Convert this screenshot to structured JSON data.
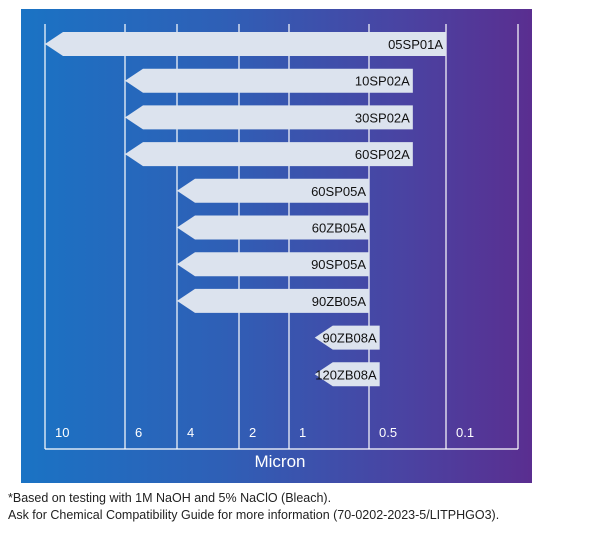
{
  "chart_data": {
    "type": "bar",
    "orientation": "horizontal",
    "xlabel": "Micron",
    "x_scale": "log",
    "x_reversed": true,
    "x_ticks": [
      10,
      6,
      4,
      2,
      1,
      0.5,
      0.1
    ],
    "x_tick_labels": [
      "10",
      "6",
      "4",
      "2",
      "1",
      "0.5",
      "0.1"
    ],
    "categories": [
      "05SP01A",
      "10SP02A",
      "30SP02A",
      "60SP02A",
      "60SP05A",
      "60ZB05A",
      "90SP05A",
      "90ZB05A",
      "90ZB08A",
      "120ZB08A"
    ],
    "ranges": [
      {
        "name": "05SP01A",
        "from": 10,
        "to": 0.1
      },
      {
        "name": "10SP02A",
        "from": 6,
        "to": 0.2
      },
      {
        "name": "30SP02A",
        "from": 6,
        "to": 0.2
      },
      {
        "name": "60SP02A",
        "from": 6,
        "to": 0.2
      },
      {
        "name": "60SP05A",
        "from": 4,
        "to": 0.5
      },
      {
        "name": "60ZB05A",
        "from": 4,
        "to": 0.5
      },
      {
        "name": "90SP05A",
        "from": 4,
        "to": 0.5
      },
      {
        "name": "90ZB05A",
        "from": 4,
        "to": 0.5
      },
      {
        "name": "90ZB08A",
        "from": 0.8,
        "to": 0.4
      },
      {
        "name": "120ZB08A",
        "from": 0.8,
        "to": 0.4
      }
    ],
    "bar_color": "#dce3ee",
    "background_gradient": [
      "#1a73c4",
      "#5a2e90"
    ],
    "grid": true
  },
  "footnotes": [
    "*Based on testing with 1M NaOH and 5% NaClO (Bleach).",
    "Ask for Chemical Compatibility Guide for more information (70-0202-2023-5/LITPHGO3)."
  ]
}
